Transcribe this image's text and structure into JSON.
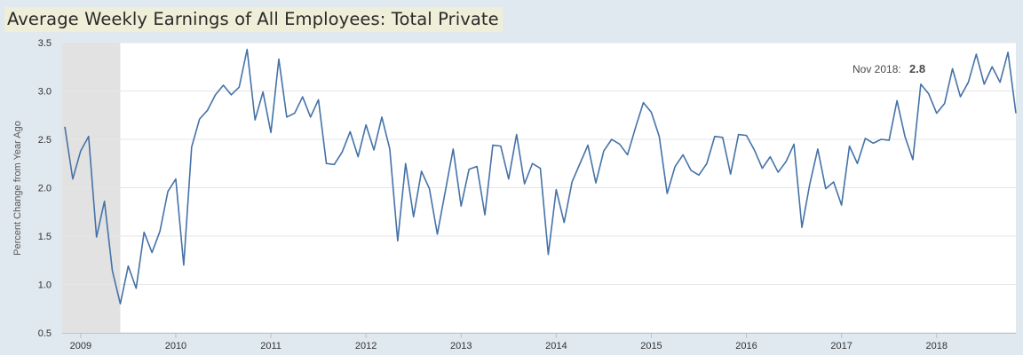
{
  "chart_data": {
    "type": "line",
    "title": "Average Weekly Earnings of All Employees: Total Private",
    "xlabel": "",
    "ylabel": "Percent Change from Year Ago",
    "ylim": [
      0.5,
      3.5
    ],
    "xlim": [
      "2008-11",
      "2018-11"
    ],
    "x_ticks": [
      "2009",
      "2010",
      "2011",
      "2012",
      "2013",
      "2014",
      "2015",
      "2016",
      "2017",
      "2018"
    ],
    "y_ticks": [
      "0.5",
      "1.0",
      "1.5",
      "2.0",
      "2.5",
      "3.0",
      "3.5"
    ],
    "recession_shading": [
      "2008-11",
      "2009-06"
    ],
    "grid": true,
    "series": [
      {
        "name": "",
        "color": "#4572a7",
        "x": [
          "2008-11",
          "2008-12",
          "2009-01",
          "2009-02",
          "2009-03",
          "2009-04",
          "2009-05",
          "2009-06",
          "2009-07",
          "2009-08",
          "2009-09",
          "2009-10",
          "2009-11",
          "2009-12",
          "2010-01",
          "2010-02",
          "2010-03",
          "2010-04",
          "2010-05",
          "2010-06",
          "2010-07",
          "2010-08",
          "2010-09",
          "2010-10",
          "2010-11",
          "2010-12",
          "2011-01",
          "2011-02",
          "2011-03",
          "2011-04",
          "2011-05",
          "2011-06",
          "2011-07",
          "2011-08",
          "2011-09",
          "2011-10",
          "2011-11",
          "2011-12",
          "2012-01",
          "2012-02",
          "2012-03",
          "2012-04",
          "2012-05",
          "2012-06",
          "2012-07",
          "2012-08",
          "2012-09",
          "2012-10",
          "2012-11",
          "2012-12",
          "2013-01",
          "2013-02",
          "2013-03",
          "2013-04",
          "2013-05",
          "2013-06",
          "2013-07",
          "2013-08",
          "2013-09",
          "2013-10",
          "2013-11",
          "2013-12",
          "2014-01",
          "2014-02",
          "2014-03",
          "2014-04",
          "2014-05",
          "2014-06",
          "2014-07",
          "2014-08",
          "2014-09",
          "2014-10",
          "2014-11",
          "2014-12",
          "2015-01",
          "2015-02",
          "2015-03",
          "2015-04",
          "2015-05",
          "2015-06",
          "2015-07",
          "2015-08",
          "2015-09",
          "2015-10",
          "2015-11",
          "2015-12",
          "2016-01",
          "2016-02",
          "2016-03",
          "2016-04",
          "2016-05",
          "2016-06",
          "2016-07",
          "2016-08",
          "2016-09",
          "2016-10",
          "2016-11",
          "2016-12",
          "2017-01",
          "2017-02",
          "2017-03",
          "2017-04",
          "2017-05",
          "2017-06",
          "2017-07",
          "2017-08",
          "2017-09",
          "2017-10",
          "2017-11",
          "2017-12",
          "2018-01",
          "2018-02",
          "2018-03",
          "2018-04",
          "2018-05",
          "2018-06",
          "2018-07",
          "2018-08",
          "2018-09",
          "2018-10",
          "2018-11"
        ],
        "values": [
          2.63,
          2.09,
          2.38,
          2.53,
          1.49,
          1.86,
          1.14,
          0.8,
          1.19,
          0.96,
          1.54,
          1.33,
          1.55,
          1.96,
          2.09,
          1.2,
          2.42,
          2.71,
          2.8,
          2.96,
          3.06,
          2.96,
          3.04,
          3.43,
          2.7,
          2.99,
          2.57,
          3.33,
          2.73,
          2.77,
          2.94,
          2.73,
          2.91,
          2.25,
          2.24,
          2.37,
          2.58,
          2.32,
          2.65,
          2.39,
          2.73,
          2.4,
          1.45,
          2.25,
          1.7,
          2.17,
          1.99,
          1.52,
          1.96,
          2.4,
          1.81,
          2.19,
          2.22,
          1.72,
          2.44,
          2.43,
          2.09,
          2.55,
          2.04,
          2.25,
          2.2,
          1.31,
          1.98,
          1.64,
          2.06,
          2.25,
          2.44,
          2.05,
          2.38,
          2.5,
          2.45,
          2.34,
          2.62,
          2.88,
          2.78,
          2.53,
          1.94,
          2.22,
          2.34,
          2.18,
          2.13,
          2.25,
          2.53,
          2.52,
          2.14,
          2.55,
          2.54,
          2.39,
          2.2,
          2.32,
          2.16,
          2.27,
          2.45,
          1.59,
          2.04,
          2.4,
          1.99,
          2.06,
          1.82,
          2.43,
          2.25,
          2.51,
          2.46,
          2.5,
          2.49,
          2.9,
          2.53,
          2.29,
          3.07,
          2.97,
          2.77,
          2.87,
          3.23,
          2.94,
          3.09,
          3.38,
          3.07,
          3.25,
          3.09,
          3.4,
          2.77
        ]
      }
    ],
    "annotation": {
      "label": "Nov 2018:",
      "value": "2.8"
    }
  }
}
